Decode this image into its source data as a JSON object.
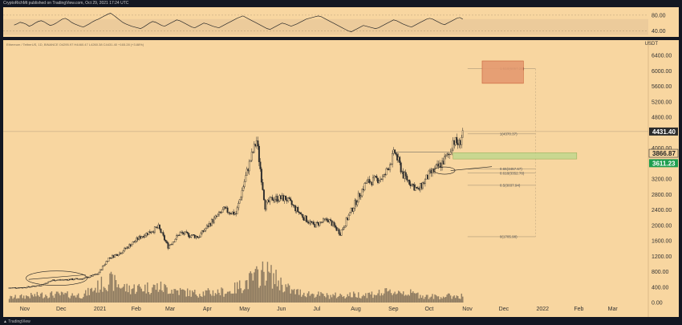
{
  "header": {
    "publisher_line": "CryptoRichMt published on TradingView.com, Oct 29, 2021 17:24 UTC"
  },
  "legend": {
    "symbol_line": "Ethereum / TetherUS, 1D, BINANCE O4295.97 H4460.47 L4260.38 C4431.40 +165.28 (+3.88%)"
  },
  "footer": {
    "brand": "TradingView"
  },
  "unit_label": "USDT",
  "colors": {
    "background": "#f8d6a0",
    "frame": "#131722",
    "candle": "#2b2b2b",
    "fib_target_box": "#e59a70",
    "support_box": "#c5d88f",
    "price_tag_current": "#2b2b2b",
    "price_tag_support": "#1e9e4f"
  },
  "chart_data": [
    {
      "type": "line",
      "panel": "rsi-indicator",
      "yticks": [
        40,
        80
      ],
      "ylim": [
        25,
        100
      ],
      "band": [
        30,
        70
      ],
      "x_start": "2020-10-24",
      "x_end": "2021-10-29",
      "values": [
        55,
        58,
        62,
        60,
        57,
        52,
        55,
        60,
        64,
        66,
        63,
        58,
        54,
        56,
        60,
        65,
        70,
        72,
        68,
        62,
        58,
        55,
        52,
        50,
        54,
        58,
        63,
        67,
        70,
        74,
        78,
        82,
        85,
        80,
        74,
        68,
        62,
        58,
        55,
        52,
        50,
        48,
        46,
        50,
        55,
        60,
        64,
        62,
        58,
        54,
        52,
        56,
        60,
        64,
        68,
        66,
        62,
        58,
        54,
        50,
        48,
        52,
        56,
        60,
        58,
        55,
        52,
        50,
        48,
        52,
        56,
        60,
        64,
        68,
        72,
        75,
        78,
        74,
        70,
        66,
        62,
        58,
        54,
        50,
        46,
        44,
        48,
        52,
        56,
        60,
        58,
        55,
        52,
        55,
        58,
        62,
        66,
        70,
        72,
        74,
        76,
        78,
        76,
        72,
        68,
        64,
        60,
        56,
        52,
        48,
        44,
        40,
        38,
        42,
        46,
        50,
        54,
        52,
        50,
        48,
        46,
        48,
        52,
        56,
        60,
        64,
        68,
        66,
        62,
        58,
        55,
        52,
        50,
        54,
        58,
        62,
        66,
        70,
        72,
        70,
        66,
        62,
        58,
        56,
        60,
        64,
        68,
        72,
        74,
        70
      ]
    },
    {
      "type": "candlestick",
      "panel": "price",
      "title": "",
      "ylabel": "USDT",
      "ylim": [
        0,
        6800
      ],
      "yticks": [
        0,
        400,
        800,
        1200,
        1600,
        2000,
        2400,
        2800,
        3200,
        3600,
        4000,
        4400,
        4800,
        5200,
        5600,
        6000,
        6400
      ],
      "ytick_labels": [
        "0.00",
        "400.00",
        "800.00",
        "1200.00",
        "1600.00",
        "2000.00",
        "2400.00",
        "2800.00",
        "3200.00",
        "3600.00",
        "4000.00",
        "4400.00",
        "4800.00",
        "5200.00",
        "5600.00",
        "6000.00",
        "6400.00"
      ],
      "xticks": [
        {
          "date": "2020-11-01",
          "label": "Nov"
        },
        {
          "date": "2020-12-01",
          "label": "Dec"
        },
        {
          "date": "2021-01-01",
          "label": "2021"
        },
        {
          "date": "2021-02-01",
          "label": "Feb"
        },
        {
          "date": "2021-03-01",
          "label": "Mar"
        },
        {
          "date": "2021-04-01",
          "label": "Apr"
        },
        {
          "date": "2021-05-01",
          "label": "May"
        },
        {
          "date": "2021-06-01",
          "label": "Jun"
        },
        {
          "date": "2021-07-01",
          "label": "Jul"
        },
        {
          "date": "2021-08-01",
          "label": "Aug"
        },
        {
          "date": "2021-09-01",
          "label": "Sep"
        },
        {
          "date": "2021-10-01",
          "label": "Oct"
        },
        {
          "date": "2021-11-01",
          "label": "Nov"
        },
        {
          "date": "2021-12-01",
          "label": "Dec"
        },
        {
          "date": "2022-01-01",
          "label": "2022"
        },
        {
          "date": "2022-02-01",
          "label": "Feb"
        },
        {
          "date": "2022-03-01",
          "label": "Mar"
        }
      ],
      "x_range": [
        "2020-10-15",
        "2022-03-31"
      ],
      "price_path": [
        [
          "2020-10-20",
          380
        ],
        [
          "2020-11-01",
          390
        ],
        [
          "2020-11-15",
          450
        ],
        [
          "2020-11-25",
          580
        ],
        [
          "2020-12-05",
          590
        ],
        [
          "2020-12-20",
          620
        ],
        [
          "2021-01-01",
          740
        ],
        [
          "2021-01-10",
          1150
        ],
        [
          "2021-01-20",
          1300
        ],
        [
          "2021-02-05",
          1700
        ],
        [
          "2021-02-20",
          1950
        ],
        [
          "2021-02-28",
          1450
        ],
        [
          "2021-03-10",
          1800
        ],
        [
          "2021-03-25",
          1700
        ],
        [
          "2021-04-05",
          2100
        ],
        [
          "2021-04-15",
          2400
        ],
        [
          "2021-04-25",
          2300
        ],
        [
          "2021-05-05",
          3500
        ],
        [
          "2021-05-12",
          4200
        ],
        [
          "2021-05-19",
          2500
        ],
        [
          "2021-05-25",
          2700
        ],
        [
          "2021-06-05",
          2700
        ],
        [
          "2021-06-20",
          2200
        ],
        [
          "2021-06-28",
          2000
        ],
        [
          "2021-07-10",
          2150
        ],
        [
          "2021-07-20",
          1800
        ],
        [
          "2021-07-31",
          2500
        ],
        [
          "2021-08-10",
          3100
        ],
        [
          "2021-08-25",
          3250
        ],
        [
          "2021-09-03",
          3900
        ],
        [
          "2021-09-10",
          3300
        ],
        [
          "2021-09-22",
          2900
        ],
        [
          "2021-10-01",
          3300
        ],
        [
          "2021-10-10",
          3550
        ],
        [
          "2021-10-18",
          3850
        ],
        [
          "2021-10-21",
          4200
        ],
        [
          "2021-10-26",
          4100
        ],
        [
          "2021-10-29",
          4431
        ]
      ],
      "volume_path": [
        [
          "2020-10-20",
          130
        ],
        [
          "2020-11-20",
          220
        ],
        [
          "2020-12-20",
          200
        ],
        [
          "2021-01-10",
          600
        ],
        [
          "2021-01-25",
          380
        ],
        [
          "2021-02-20",
          420
        ],
        [
          "2021-03-20",
          250
        ],
        [
          "2021-04-20",
          300
        ],
        [
          "2021-05-12",
          700
        ],
        [
          "2021-05-19",
          850
        ],
        [
          "2021-06-10",
          300
        ],
        [
          "2021-07-10",
          180
        ],
        [
          "2021-08-10",
          220
        ],
        [
          "2021-09-07",
          300
        ],
        [
          "2021-10-01",
          160
        ],
        [
          "2021-10-29",
          180
        ]
      ],
      "fib_levels": [
        {
          "label": "1.618(6057.26)",
          "value": 6057.26
        },
        {
          "label": "1(4370.37)",
          "value": 4370.37
        },
        {
          "label": "0.65(3457.67)",
          "value": 3457.67
        },
        {
          "label": "0.618(3352.78)",
          "value": 3352.78
        },
        {
          "label": "0.5(3037.94)",
          "value": 3037.94
        },
        {
          "label": "0(1705.98)",
          "value": 1705.98
        }
      ],
      "target_box": {
        "from": "2021-11-14",
        "to": "2021-12-18",
        "low": 5680,
        "high": 6260
      },
      "support_box": {
        "from": "2021-10-21",
        "to": "2022-01-31",
        "low": 3720,
        "high": 3880
      },
      "price_tags": [
        {
          "label": "4431.40",
          "value": 4431.4,
          "style": "current"
        },
        {
          "label": "3866.87",
          "value": 3866.87,
          "style": "plain"
        },
        {
          "label": "3611.23",
          "value": 3611.23,
          "style": "support"
        }
      ]
    }
  ]
}
